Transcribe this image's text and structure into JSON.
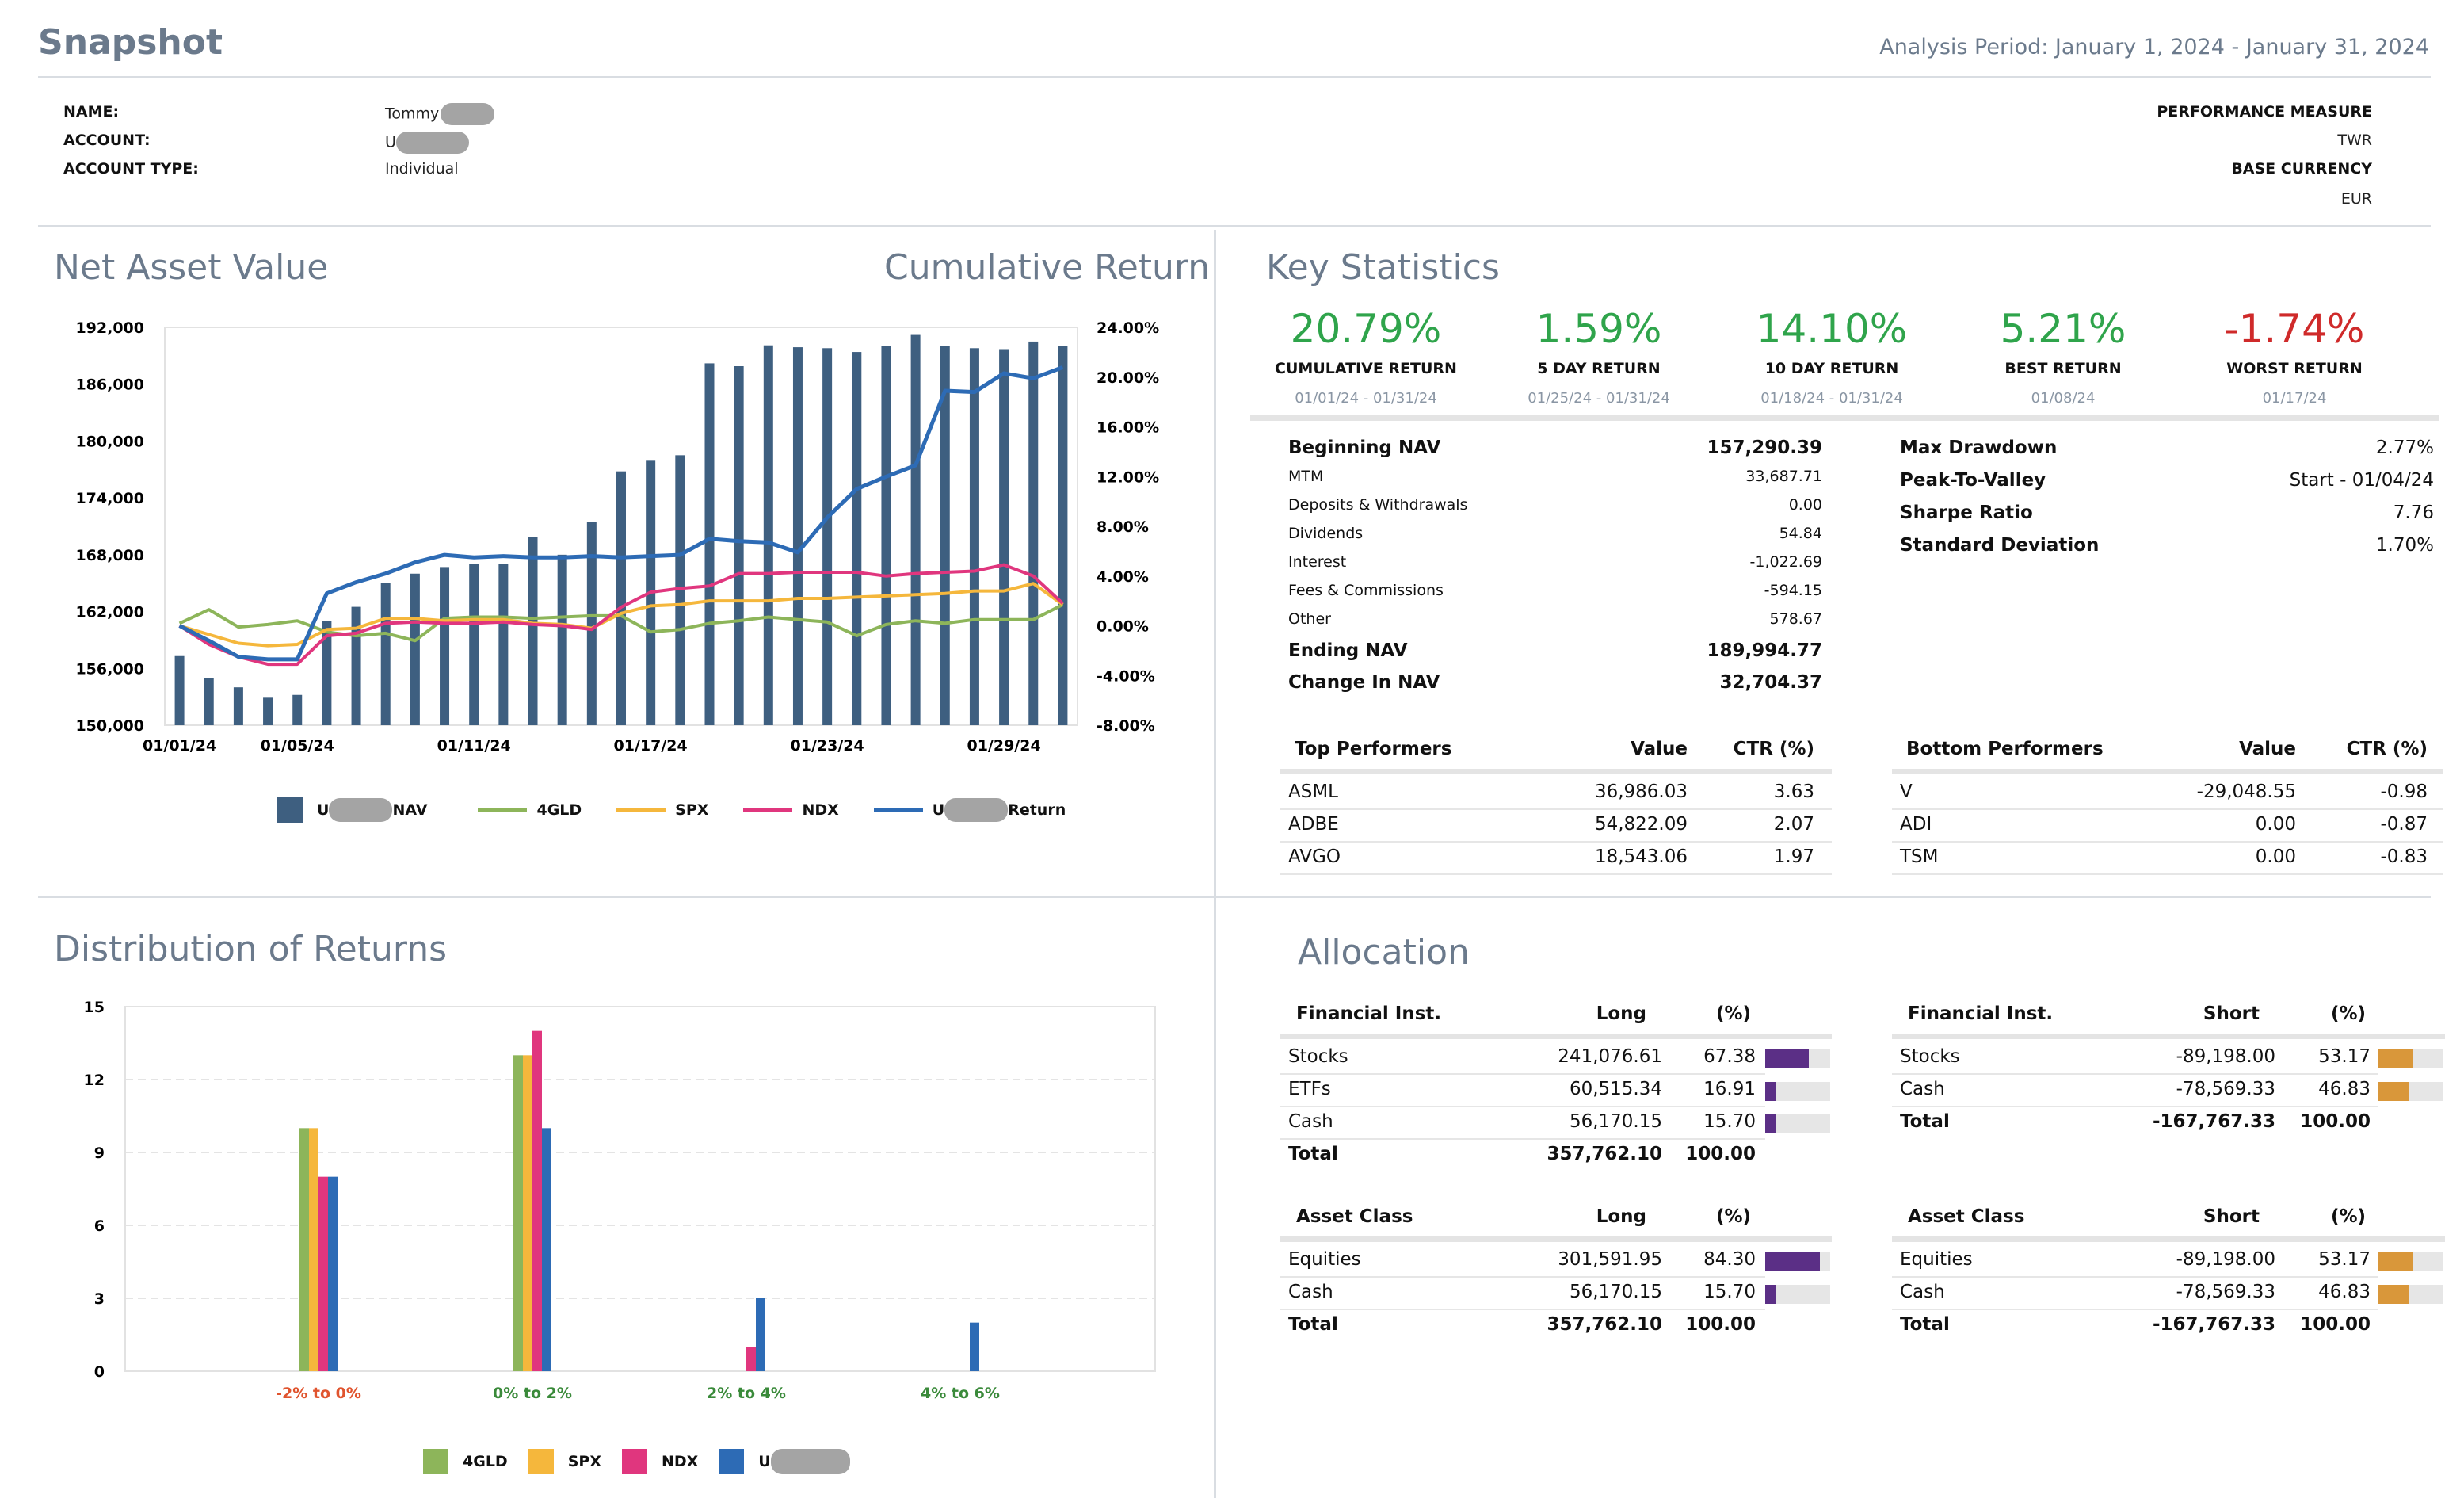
{
  "header": {
    "title": "Snapshot",
    "period": "Analysis Period: January 1, 2024 - January 31, 2024"
  },
  "account": {
    "name_label": "NAME:",
    "name_value": "Tommy",
    "account_label": "ACCOUNT:",
    "account_value": "U",
    "type_label": "ACCOUNT TYPE:",
    "type_value": "Individual",
    "perf_label": "PERFORMANCE MEASURE",
    "perf_value": "TWR",
    "currency_label": "BASE CURRENCY",
    "currency_value": "EUR"
  },
  "nav_panel": {
    "title": "Net Asset Value",
    "right_title": "Cumulative Return",
    "legend": {
      "nav_prefix": "U",
      "nav_suffix": "NAV",
      "gld": "4GLD",
      "spx": "SPX",
      "ndx": "NDX",
      "ret_prefix": "U",
      "ret_suffix": "Return"
    }
  },
  "dist_panel": {
    "title": "Distribution of Returns",
    "legend": {
      "gld": "4GLD",
      "spx": "SPX",
      "ndx": "NDX",
      "acct": "U"
    }
  },
  "colors": {
    "nav_bar": "#3e5f80",
    "gld": "#8db55a",
    "spx": "#f5b73c",
    "ndx": "#e0367e",
    "ret": "#2d6bb5",
    "purple": "#5b2f86",
    "orange": "#d9973a",
    "green": "#2fa44b",
    "red": "#cf2a2a",
    "neg_label": "#e0542e",
    "pos_label": "#3a8a3a"
  },
  "nav_chart": {
    "type": "bar",
    "x": [
      "01/01/24",
      "01/02/24",
      "01/03/24",
      "01/04/24",
      "01/05/24",
      "01/06/24",
      "01/07/24",
      "01/08/24",
      "01/09/24",
      "01/10/24",
      "01/11/24",
      "01/12/24",
      "01/13/24",
      "01/14/24",
      "01/15/24",
      "01/16/24",
      "01/17/24",
      "01/18/24",
      "01/19/24",
      "01/20/24",
      "01/21/24",
      "01/22/24",
      "01/23/24",
      "01/24/24",
      "01/25/24",
      "01/26/24",
      "01/27/24",
      "01/28/24",
      "01/29/24",
      "01/30/24",
      "01/31/24"
    ],
    "x_ticks": [
      "01/01/24",
      "01/05/24",
      "01/11/24",
      "01/17/24",
      "01/23/24",
      "01/29/24"
    ],
    "y_left_ticks": [
      "150,000",
      "156,000",
      "162,000",
      "168,000",
      "174,000",
      "180,000",
      "186,000",
      "192,000"
    ],
    "y_right_ticks": [
      "-8.00%",
      "-4.00%",
      "0.00%",
      "4.00%",
      "8.00%",
      "12.00%",
      "16.00%",
      "20.00%",
      "24.00%"
    ],
    "ylim_left": [
      150000,
      192000
    ],
    "ylim_right": [
      -8,
      24
    ],
    "nav": [
      157300,
      155000,
      154000,
      152900,
      153200,
      161000,
      162500,
      165000,
      166000,
      166700,
      167000,
      167000,
      169900,
      168000,
      171500,
      176800,
      178000,
      178500,
      188200,
      187900,
      190100,
      189900,
      189800,
      189400,
      190000,
      191200,
      190000,
      189800,
      189700,
      190500,
      190000
    ],
    "series": [
      {
        "name": "4GLD",
        "values": [
          0.2,
          1.3,
          -0.1,
          0.1,
          0.4,
          -0.5,
          -0.8,
          -0.6,
          -1.2,
          0.6,
          0.7,
          0.7,
          0.6,
          0.7,
          0.8,
          0.8,
          -0.5,
          -0.3,
          0.2,
          0.4,
          0.7,
          0.5,
          0.3,
          -0.8,
          0.1,
          0.4,
          0.2,
          0.5,
          0.5,
          0.5,
          1.7
        ]
      },
      {
        "name": "SPX",
        "values": [
          0.0,
          -0.7,
          -1.4,
          -1.6,
          -1.5,
          -0.3,
          -0.2,
          0.6,
          0.6,
          0.4,
          0.5,
          0.5,
          0.2,
          0.1,
          -0.2,
          1.0,
          1.6,
          1.7,
          2.0,
          2.0,
          2.0,
          2.2,
          2.2,
          2.3,
          2.4,
          2.5,
          2.6,
          2.8,
          2.8,
          3.4,
          1.7
        ]
      },
      {
        "name": "NDX",
        "values": [
          0.0,
          -1.5,
          -2.5,
          -3.1,
          -3.1,
          -0.8,
          -0.6,
          0.2,
          0.3,
          0.2,
          0.2,
          0.3,
          0.1,
          0.0,
          -0.3,
          1.5,
          2.7,
          3.0,
          3.2,
          4.2,
          4.2,
          4.3,
          4.3,
          4.3,
          4.0,
          4.2,
          4.3,
          4.4,
          4.9,
          4.0,
          1.8
        ]
      },
      {
        "name": "Return",
        "values": [
          0.0,
          -1.2,
          -2.5,
          -2.7,
          -2.7,
          2.6,
          3.5,
          4.2,
          5.1,
          5.7,
          5.5,
          5.6,
          5.5,
          5.5,
          5.6,
          5.5,
          5.6,
          5.7,
          7.0,
          6.8,
          6.7,
          5.9,
          8.7,
          11.0,
          12.0,
          12.9,
          18.9,
          18.8,
          20.3,
          19.9,
          20.79
        ]
      }
    ]
  },
  "dist_chart": {
    "type": "bar",
    "categories": [
      "-2% to 0%",
      "0% to 2%",
      "2% to 4%",
      "4% to 6%"
    ],
    "y_ticks": [
      "0",
      "3",
      "6",
      "9",
      "12",
      "15"
    ],
    "ylim": [
      0,
      15
    ],
    "series": [
      {
        "name": "4GLD",
        "values": [
          10,
          13,
          0,
          0
        ]
      },
      {
        "name": "SPX",
        "values": [
          10,
          13,
          0,
          0
        ]
      },
      {
        "name": "NDX",
        "values": [
          8,
          14,
          1,
          0
        ]
      },
      {
        "name": "U",
        "values": [
          8,
          10,
          3,
          2
        ]
      }
    ]
  },
  "key_stats": {
    "title": "Key Statistics",
    "cards": [
      {
        "value": "20.79%",
        "label": "CUMULATIVE RETURN",
        "sub": "01/01/24 - 01/31/24",
        "tone": "green"
      },
      {
        "value": "1.59%",
        "label": "5 DAY RETURN",
        "sub": "01/25/24 - 01/31/24",
        "tone": "green"
      },
      {
        "value": "14.10%",
        "label": "10 DAY RETURN",
        "sub": "01/18/24 - 01/31/24",
        "tone": "green"
      },
      {
        "value": "5.21%",
        "label": "BEST RETURN",
        "sub": "01/08/24",
        "tone": "green"
      },
      {
        "value": "-1.74%",
        "label": "WORST RETURN",
        "sub": "01/17/24",
        "tone": "red"
      }
    ],
    "nav_rows": [
      {
        "label": "Beginning NAV",
        "value": "157,290.39",
        "bold": true
      },
      {
        "label": "MTM",
        "value": "33,687.71",
        "bold": false
      },
      {
        "label": "Deposits & Withdrawals",
        "value": "0.00",
        "bold": false
      },
      {
        "label": "Dividends",
        "value": "54.84",
        "bold": false
      },
      {
        "label": "Interest",
        "value": "-1,022.69",
        "bold": false
      },
      {
        "label": "Fees & Commissions",
        "value": "-594.15",
        "bold": false
      },
      {
        "label": "Other",
        "value": "578.67",
        "bold": false
      },
      {
        "label": "Ending NAV",
        "value": "189,994.77",
        "bold": true
      },
      {
        "label": "Change In NAV",
        "value": "32,704.37",
        "bold": true
      }
    ],
    "risk_rows": [
      {
        "label": "Max Drawdown",
        "value": "2.77%"
      },
      {
        "label": "Peak-To-Valley",
        "value": "Start - 01/04/24"
      },
      {
        "label": "Sharpe Ratio",
        "value": "7.76"
      },
      {
        "label": "Standard Deviation",
        "value": "1.70%"
      }
    ],
    "top": {
      "headers": [
        "Top Performers",
        "Value",
        "CTR (%)"
      ],
      "rows": [
        [
          "ASML",
          "36,986.03",
          "3.63"
        ],
        [
          "ADBE",
          "54,822.09",
          "2.07"
        ],
        [
          "AVGO",
          "18,543.06",
          "1.97"
        ]
      ]
    },
    "bottom": {
      "headers": [
        "Bottom Performers",
        "Value",
        "CTR (%)"
      ],
      "rows": [
        [
          "V",
          "-29,048.55",
          "-0.98"
        ],
        [
          "ADI",
          "0.00",
          "-0.87"
        ],
        [
          "TSM",
          "0.00",
          "-0.83"
        ]
      ]
    }
  },
  "allocation": {
    "title": "Allocation",
    "tables": [
      {
        "headers": [
          "Financial Inst.",
          "Long",
          "(%)"
        ],
        "rows": [
          [
            "Stocks",
            "241,076.61",
            "67.38",
            67.38
          ],
          [
            "ETFs",
            "60,515.34",
            "16.91",
            16.91
          ],
          [
            "Cash",
            "56,170.15",
            "15.70",
            15.7
          ]
        ],
        "total": [
          "Total",
          "357,762.10",
          "100.00"
        ],
        "tone": "purple"
      },
      {
        "headers": [
          "Financial Inst.",
          "Short",
          "(%)"
        ],
        "rows": [
          [
            "Stocks",
            "-89,198.00",
            "53.17",
            53.17
          ],
          [
            "Cash",
            "-78,569.33",
            "46.83",
            46.83
          ]
        ],
        "total": [
          "Total",
          "-167,767.33",
          "100.00"
        ],
        "tone": "orange"
      },
      {
        "headers": [
          "Asset Class",
          "Long",
          "(%)"
        ],
        "rows": [
          [
            "Equities",
            "301,591.95",
            "84.30",
            84.3
          ],
          [
            "Cash",
            "56,170.15",
            "15.70",
            15.7
          ]
        ],
        "total": [
          "Total",
          "357,762.10",
          "100.00"
        ],
        "tone": "purple"
      },
      {
        "headers": [
          "Asset Class",
          "Short",
          "(%)"
        ],
        "rows": [
          [
            "Equities",
            "-89,198.00",
            "53.17",
            53.17
          ],
          [
            "Cash",
            "-78,569.33",
            "46.83",
            46.83
          ]
        ],
        "total": [
          "Total",
          "-167,767.33",
          "100.00"
        ],
        "tone": "orange"
      }
    ]
  }
}
